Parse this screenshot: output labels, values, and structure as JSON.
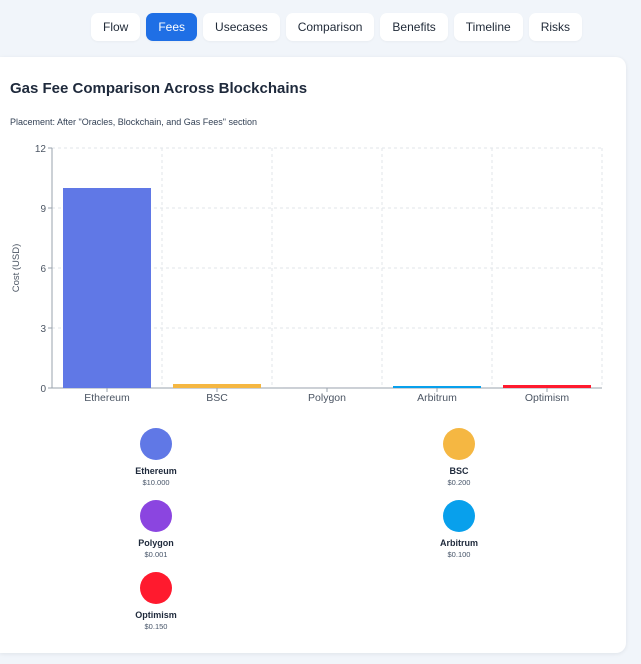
{
  "tabs": [
    {
      "label": "Flow",
      "active": false
    },
    {
      "label": "Fees",
      "active": true
    },
    {
      "label": "Usecases",
      "active": false
    },
    {
      "label": "Comparison",
      "active": false
    },
    {
      "label": "Benefits",
      "active": false
    },
    {
      "label": "Timeline",
      "active": false
    },
    {
      "label": "Risks",
      "active": false
    }
  ],
  "card": {
    "title": "Gas Fee Comparison Across Blockchains",
    "placement": "Placement: After \"Oracles, Blockchain, and Gas Fees\" section"
  },
  "chart_data": {
    "type": "bar",
    "categories": [
      "Ethereum",
      "BSC",
      "Polygon",
      "Arbitrum",
      "Optimism"
    ],
    "values": [
      10.0,
      0.2,
      0.001,
      0.1,
      0.15
    ],
    "colors": [
      "#6078e6",
      "#f5b742",
      "#8b45e0",
      "#08a0ec",
      "#ff1a2e"
    ],
    "ylabel": "Cost (USD)",
    "xlabel": "",
    "ylim": [
      0,
      12
    ],
    "yticks": [
      0,
      3,
      6,
      9,
      12
    ],
    "grid": true
  },
  "legend": [
    {
      "name": "Ethereum",
      "value": "$10.000",
      "color": "#6078e6"
    },
    {
      "name": "BSC",
      "value": "$0.200",
      "color": "#f5b742"
    },
    {
      "name": "Polygon",
      "value": "$0.001",
      "color": "#8b45e0"
    },
    {
      "name": "Arbitrum",
      "value": "$0.100",
      "color": "#08a0ec"
    },
    {
      "name": "Optimism",
      "value": "$0.150",
      "color": "#ff1a2e"
    }
  ]
}
